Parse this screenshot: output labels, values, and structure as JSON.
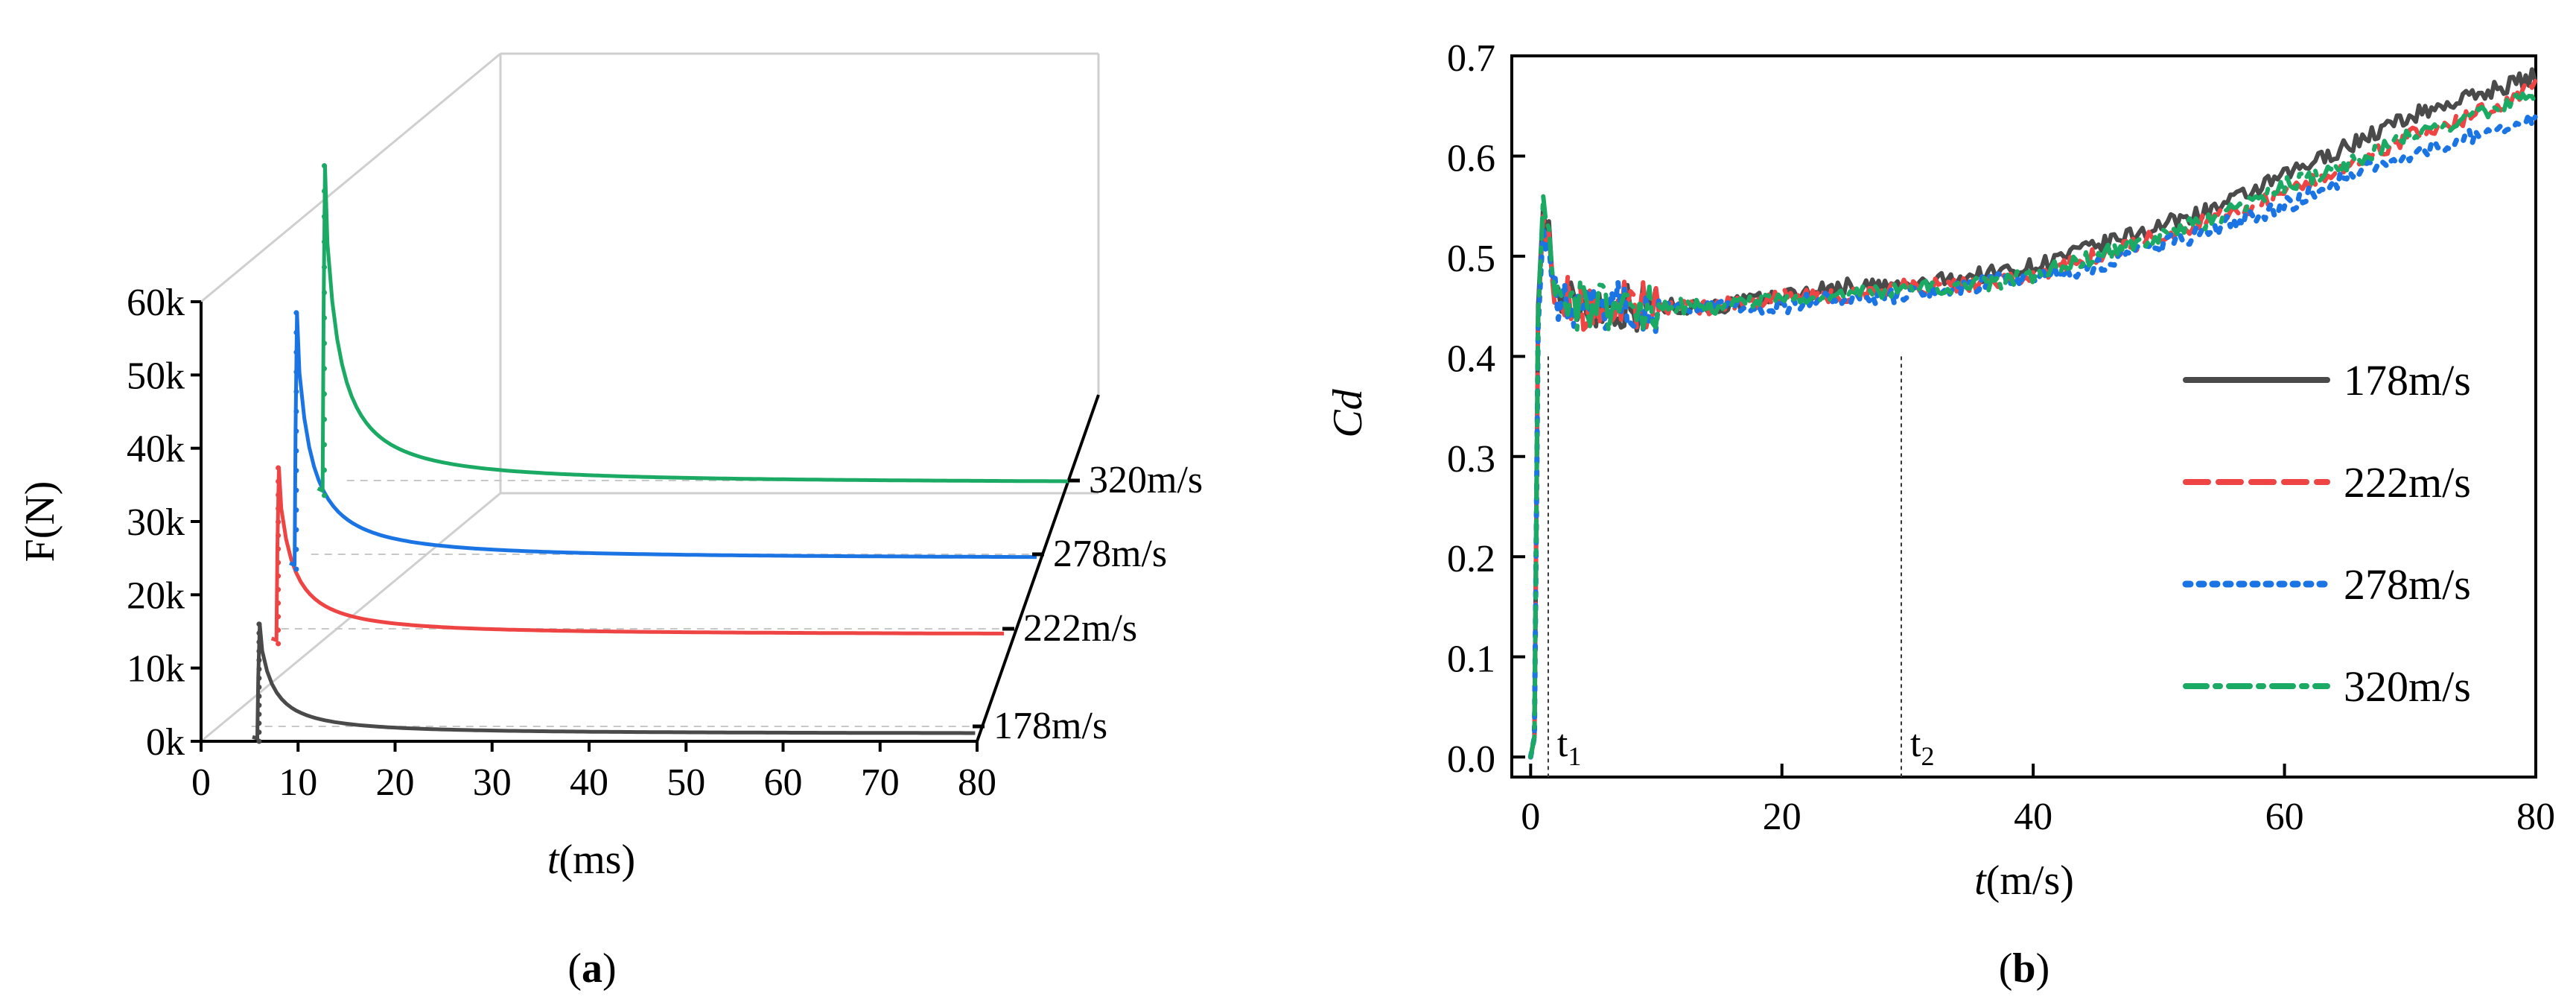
{
  "chart_data": [
    {
      "panel_label": "a",
      "type": "line",
      "style": "3d-waterfall",
      "ylabel": "F(N)",
      "xlabel_italic": "t",
      "xlabel_unit": "(ms)",
      "xlim": [
        0,
        80
      ],
      "ylim": [
        0,
        60000
      ],
      "xticks": [
        "0",
        "10",
        "20",
        "30",
        "40",
        "50",
        "60",
        "70",
        "80"
      ],
      "yticks": [
        "0k",
        "10k",
        "20k",
        "30k",
        "40k",
        "50k",
        "60k"
      ],
      "series": [
        {
          "name": "178m/s",
          "color": "#4a4a4a",
          "peak_time_ms": 5.9,
          "peak_force": 16000,
          "plateau_force": 1000
        },
        {
          "name": "222m/s",
          "color": "#ee4444",
          "peak_time_ms": 4.8,
          "peak_force": 24000,
          "plateau_force": 1200
        },
        {
          "name": "278m/s",
          "color": "#1b74e4",
          "peak_time_ms": 3.6,
          "peak_force": 35000,
          "plateau_force": 1400
        },
        {
          "name": "320m/s",
          "color": "#1aaa63",
          "peak_time_ms": 2.8,
          "peak_force": 45000,
          "plateau_force": 1600
        }
      ]
    },
    {
      "panel_label": "b",
      "type": "line",
      "ylabel": "Cd",
      "xlabel_italic": "t",
      "xlabel_unit": "(m/s)",
      "xlim": [
        -1.5,
        80
      ],
      "ylim": [
        -0.02,
        0.7
      ],
      "xticks": [
        "0",
        "20",
        "40",
        "60",
        "80"
      ],
      "yticks": [
        "0.0",
        "0.1",
        "0.2",
        "0.3",
        "0.4",
        "0.5",
        "0.6",
        "0.7"
      ],
      "annotations": [
        {
          "label": "t",
          "subscript": "1",
          "x": 1.4
        },
        {
          "label": "t",
          "subscript": "2",
          "x": 29.5
        }
      ],
      "x": [
        0,
        0.6,
        1.2,
        2,
        4,
        6,
        8,
        10,
        15,
        20,
        25,
        30,
        35,
        40,
        45,
        50,
        55,
        60,
        65,
        70,
        75,
        80
      ],
      "series": [
        {
          "name": "178m/s",
          "color": "#4a4a4a",
          "dash": "solid",
          "values": [
            0.0,
            0.45,
            0.55,
            0.46,
            0.45,
            0.45,
            0.45,
            0.45,
            0.45,
            0.46,
            0.47,
            0.47,
            0.48,
            0.49,
            0.51,
            0.53,
            0.55,
            0.58,
            0.61,
            0.64,
            0.66,
            0.68
          ]
        },
        {
          "name": "222m/s",
          "color": "#ee4444",
          "dash": "dashed",
          "values": [
            0.0,
            0.44,
            0.54,
            0.46,
            0.45,
            0.45,
            0.45,
            0.45,
            0.45,
            0.46,
            0.46,
            0.47,
            0.47,
            0.48,
            0.5,
            0.52,
            0.54,
            0.56,
            0.59,
            0.62,
            0.64,
            0.67
          ]
        },
        {
          "name": "278m/s",
          "color": "#1b74e4",
          "dash": "dotted",
          "values": [
            0.0,
            0.43,
            0.53,
            0.46,
            0.45,
            0.45,
            0.45,
            0.45,
            0.45,
            0.45,
            0.46,
            0.46,
            0.47,
            0.48,
            0.49,
            0.51,
            0.53,
            0.55,
            0.58,
            0.6,
            0.62,
            0.64
          ]
        },
        {
          "name": "320m/s",
          "color": "#1aaa63",
          "dash": "dashdot",
          "values": [
            0.0,
            0.44,
            0.56,
            0.46,
            0.45,
            0.45,
            0.45,
            0.45,
            0.45,
            0.46,
            0.46,
            0.47,
            0.47,
            0.48,
            0.5,
            0.52,
            0.54,
            0.57,
            0.59,
            0.62,
            0.64,
            0.66
          ]
        }
      ]
    }
  ]
}
